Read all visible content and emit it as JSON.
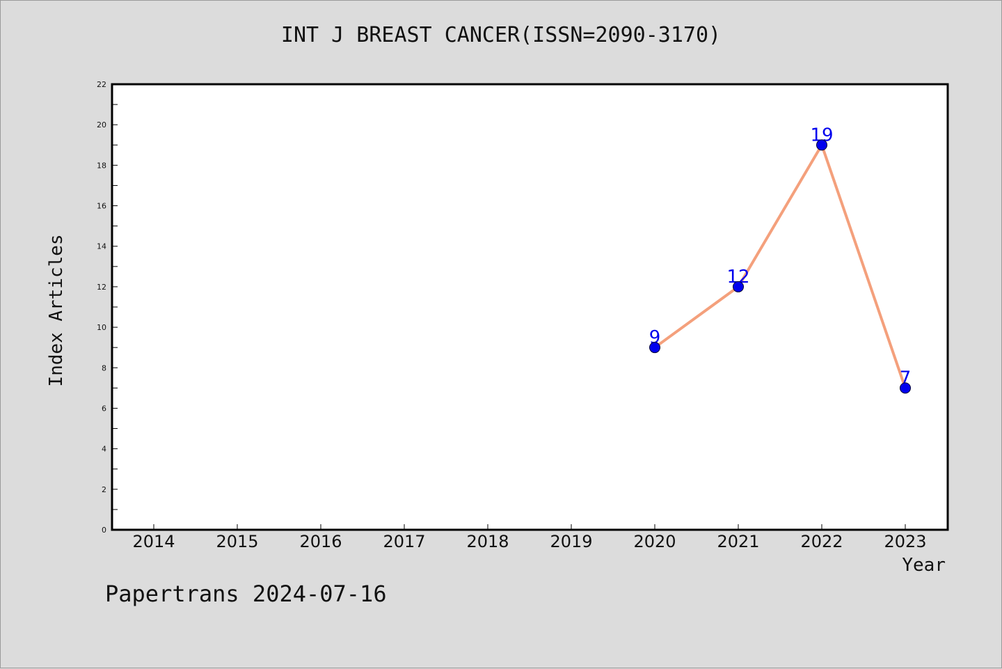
{
  "chart_data": {
    "type": "line",
    "title": "INT J BREAST CANCER(ISSN=2090-3170)",
    "xlabel": "Year",
    "ylabel": "Index Articles",
    "categories": [
      "2014",
      "2015",
      "2016",
      "2017",
      "2018",
      "2019",
      "2020",
      "2021",
      "2022",
      "2023"
    ],
    "series": [
      {
        "x": [
          "2020",
          "2021",
          "2022",
          "2023"
        ],
        "values": [
          9,
          12,
          19,
          7
        ],
        "data_labels": [
          "9",
          "12",
          "19",
          "7"
        ]
      }
    ],
    "ylim": [
      0,
      22
    ],
    "yticks": [
      "0",
      "2",
      "4",
      "6",
      "8",
      "10",
      "12",
      "14",
      "16",
      "18",
      "20",
      "22"
    ],
    "grid": false,
    "line_color": "#f4a07c",
    "marker_color": "#0000ee",
    "label_color": "#0000ee"
  },
  "footer": "Papertrans 2024-07-16"
}
